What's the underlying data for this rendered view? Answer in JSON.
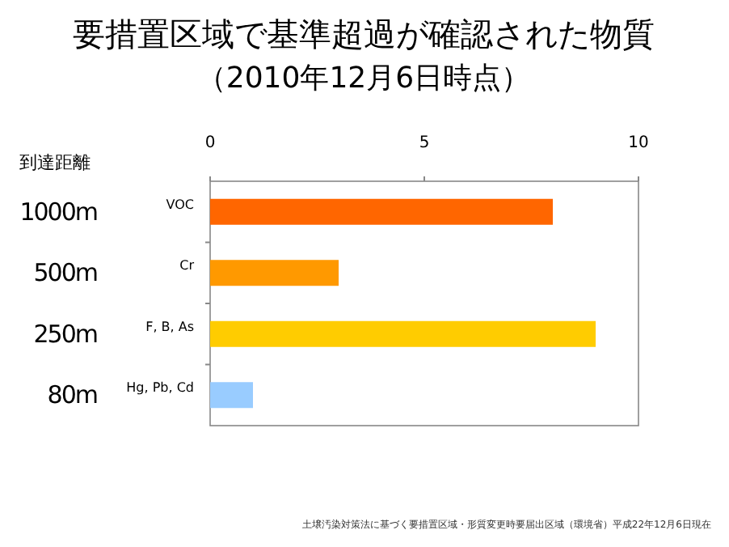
{
  "chart_data": {
    "type": "bar",
    "orientation": "horizontal",
    "title": "要措置区域で基準超過が確認された物質",
    "subtitle": "（2010年12月6日時点）",
    "ylabel": "到達距離",
    "categories": [
      "VOC",
      "Cr",
      "F, B, As",
      "Hg, Pb, Cd"
    ],
    "values": [
      8,
      3,
      9,
      1
    ],
    "colors": [
      "#ff6600",
      "#ff9900",
      "#ffcc00",
      "#99ccff"
    ],
    "xlim": [
      0,
      10
    ],
    "xticks": [
      0,
      5,
      10
    ],
    "annotations": [
      "1000m",
      "500m",
      "250m",
      "80m",
      "土壌汚染対策法に基づく要措置区域・形質変更時要届出区域（環境省）平成22年12月6日現在"
    ]
  }
}
